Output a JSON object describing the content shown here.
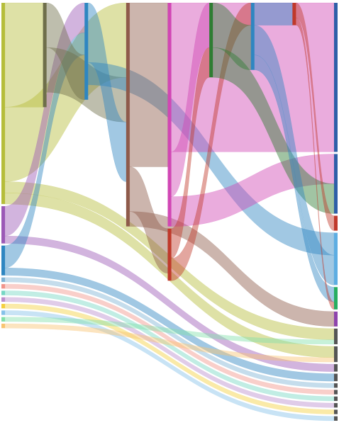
{
  "chart_data": {
    "type": "sankey",
    "nodes": [
      {
        "column": 0,
        "color": "#b5bd3a"
      },
      {
        "column": 0,
        "color": "#9b59b6"
      },
      {
        "column": 0,
        "color": "#2e86c1"
      },
      {
        "column": 0,
        "color": "#7fb3d5"
      },
      {
        "column": 0,
        "color": "#f1948a"
      },
      {
        "column": 0,
        "color": "#76d7c4"
      },
      {
        "column": 0,
        "color": "#bb8fce"
      },
      {
        "column": 0,
        "color": "#f4d03f"
      },
      {
        "column": 0,
        "color": "#85c1e9"
      },
      {
        "column": 0,
        "color": "#82e0aa"
      },
      {
        "column": 0,
        "color": "#f8c471"
      },
      {
        "column": 1,
        "color": "#6e6e4a"
      },
      {
        "column": 2,
        "color": "#2e86c1"
      },
      {
        "column": 3,
        "color": "#8e5a4a"
      },
      {
        "column": 4,
        "color": "#d147b4"
      },
      {
        "column": 4,
        "color": "#c0392b"
      },
      {
        "column": 5,
        "color": "#2e7d32"
      },
      {
        "column": 6,
        "color": "#2e86c1"
      },
      {
        "column": 7,
        "color": "#c0392b"
      },
      {
        "column": 8,
        "color": "#2e5fa8"
      },
      {
        "column": 8,
        "color": "#2e5fa8"
      },
      {
        "column": 8,
        "color": "#c0392b"
      },
      {
        "column": 8,
        "color": "#5dade2"
      },
      {
        "column": 8,
        "color": "#27ae60"
      },
      {
        "column": 8,
        "color": "#8e44ad"
      },
      {
        "column": 8,
        "color": "#555555"
      },
      {
        "column": 8,
        "color": "#555555"
      },
      {
        "column": 8,
        "color": "#555555"
      },
      {
        "column": 8,
        "color": "#555555"
      },
      {
        "column": 8,
        "color": "#555555"
      },
      {
        "column": 8,
        "color": "#555555"
      },
      {
        "column": 8,
        "color": "#555555"
      },
      {
        "column": 8,
        "color": "#555555"
      },
      {
        "column": 8,
        "color": "#555555"
      },
      {
        "column": 8,
        "color": "#555555"
      }
    ],
    "links": [
      {
        "source": 0,
        "target": 11,
        "value": 14
      },
      {
        "source": 0,
        "target": 13,
        "value": 10
      },
      {
        "source": 0,
        "target": 25,
        "value": 1.5
      },
      {
        "source": 0,
        "target": 26,
        "value": 1.5
      },
      {
        "source": 1,
        "target": 12,
        "value": 4
      },
      {
        "source": 1,
        "target": 27,
        "value": 1
      },
      {
        "source": 2,
        "target": 12,
        "value": 3
      },
      {
        "source": 2,
        "target": 28,
        "value": 1
      },
      {
        "source": 3,
        "target": 29,
        "value": 0.6
      },
      {
        "source": 4,
        "target": 30,
        "value": 0.6
      },
      {
        "source": 5,
        "target": 31,
        "value": 0.6
      },
      {
        "source": 6,
        "target": 32,
        "value": 0.6
      },
      {
        "source": 7,
        "target": 33,
        "value": 0.6
      },
      {
        "source": 8,
        "target": 34,
        "value": 0.6
      },
      {
        "source": 9,
        "target": 25,
        "value": 0.6
      },
      {
        "source": 10,
        "target": 26,
        "value": 0.6
      },
      {
        "source": 11,
        "target": 12,
        "value": 6
      },
      {
        "source": 11,
        "target": 13,
        "value": 6
      },
      {
        "source": 12,
        "target": 13,
        "value": 8
      },
      {
        "source": 12,
        "target": 22,
        "value": 3
      },
      {
        "source": 13,
        "target": 14,
        "value": 22
      },
      {
        "source": 13,
        "target": 15,
        "value": 6
      },
      {
        "source": 13,
        "target": 24,
        "value": 2
      },
      {
        "source": 14,
        "target": 19,
        "value": 20
      },
      {
        "source": 14,
        "target": 16,
        "value": 6
      },
      {
        "source": 14,
        "target": 20,
        "value": 4
      },
      {
        "source": 15,
        "target": 16,
        "value": 4
      },
      {
        "source": 15,
        "target": 17,
        "value": 3
      },
      {
        "source": 16,
        "target": 17,
        "value": 6
      },
      {
        "source": 16,
        "target": 20,
        "value": 4
      },
      {
        "source": 17,
        "target": 18,
        "value": 3
      },
      {
        "source": 17,
        "target": 22,
        "value": 4
      },
      {
        "source": 17,
        "target": 23,
        "value": 2
      },
      {
        "source": 18,
        "target": 21,
        "value": 2
      },
      {
        "source": 18,
        "target": 23,
        "value": 1
      }
    ]
  }
}
